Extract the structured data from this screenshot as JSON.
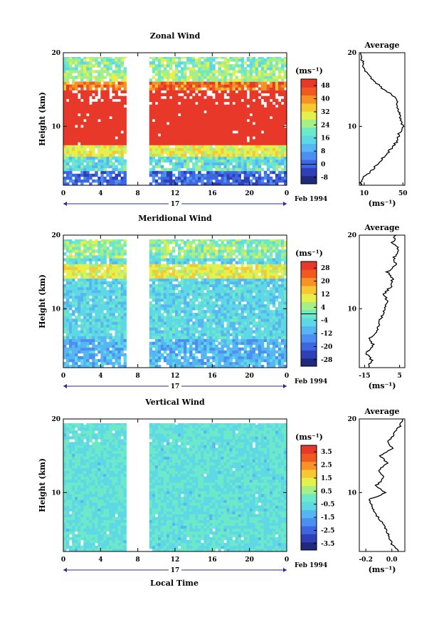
{
  "figure": {
    "time_label": "Local Time",
    "date_label": "Feb 1994",
    "day_label": "17"
  },
  "colormap": [
    "#202a7d",
    "#2f3fb6",
    "#3d66e0",
    "#4b8ff0",
    "#56b6f2",
    "#5fd8e6",
    "#6de8c9",
    "#a6ef86",
    "#e6f04a",
    "#f8c832",
    "#f89126",
    "#f05a20",
    "#e8382a"
  ],
  "chart_data": [
    {
      "type": "heatmap",
      "title": "Zonal Wind",
      "xlabel": "",
      "ylabel": "Height (km)",
      "units": "(ms⁻¹)",
      "x_ticks": [
        "0",
        "4",
        "8",
        "12",
        "16",
        "20",
        "0"
      ],
      "xlim": [
        0,
        24
      ],
      "ylim": [
        2,
        20
      ],
      "y_ticks": [
        "20",
        "10"
      ],
      "data_gap_hours": [
        6.9,
        9.2
      ],
      "colorbar_ticks": [
        "48",
        "40",
        "32",
        "24",
        "16",
        "8",
        "0",
        "-8"
      ],
      "colorbar_range": [
        -12,
        52
      ],
      "contour_level": 0,
      "profile": {
        "title": "Average",
        "xlim": [
          5,
          52
        ],
        "x_ticks": [
          "10",
          "50"
        ],
        "y_ticks": [
          "20",
          "10"
        ],
        "height_km": [
          2,
          3,
          4,
          5,
          6,
          7,
          8,
          9,
          10,
          11,
          12,
          13,
          14,
          15,
          16,
          17,
          18,
          19,
          20
        ],
        "values": [
          6,
          8,
          18,
          24,
          32,
          38,
          44,
          46,
          50,
          48,
          46,
          44,
          42,
          30,
          22,
          14,
          10,
          8,
          6
        ]
      }
    },
    {
      "type": "heatmap",
      "title": "Meridional Wind",
      "xlabel": "",
      "ylabel": "Height (km)",
      "units": "(ms⁻¹)",
      "x_ticks": [
        "0",
        "4",
        "8",
        "12",
        "16",
        "20",
        "0"
      ],
      "xlim": [
        0,
        24
      ],
      "ylim": [
        2,
        20
      ],
      "y_ticks": [
        "20",
        "10"
      ],
      "data_gap_hours": [
        6.9,
        9.2
      ],
      "colorbar_ticks": [
        "28",
        "20",
        "12",
        "4",
        "-4",
        "-12",
        "-20",
        "-28"
      ],
      "colorbar_range": [
        -32,
        32
      ],
      "contour_level": 0,
      "profile": {
        "title": "Average",
        "xlim": [
          -18,
          8
        ],
        "x_ticks": [
          "-15",
          "5"
        ],
        "y_ticks": [
          "20",
          "10"
        ],
        "height_km": [
          2,
          3,
          4,
          5,
          6,
          7,
          8,
          9,
          10,
          11,
          12,
          13,
          14,
          15,
          16,
          17,
          18,
          19,
          20
        ],
        "values": [
          -13,
          -11,
          -14,
          -10,
          -12,
          -8,
          -7,
          -5,
          -3,
          -2,
          -4,
          0,
          1,
          -2,
          3,
          2,
          5,
          1,
          3
        ]
      }
    },
    {
      "type": "heatmap",
      "title": "Vertical Wind",
      "xlabel": "Local Time",
      "ylabel": "Height (km)",
      "units": "(ms⁻¹)",
      "x_ticks": [
        "0",
        "4",
        "8",
        "12",
        "16",
        "20",
        "0"
      ],
      "xlim": [
        0,
        24
      ],
      "ylim": [
        2,
        20
      ],
      "y_ticks": [
        "20",
        "10"
      ],
      "data_gap_hours": [
        6.9,
        9.2
      ],
      "colorbar_ticks": [
        "3.5",
        "2.5",
        "1.5",
        "0.5",
        "-0.5",
        "-1.5",
        "-2.5",
        "-3.5"
      ],
      "colorbar_range": [
        -4,
        4
      ],
      "profile": {
        "title": "Average",
        "xlim": [
          -0.25,
          0.1
        ],
        "x_ticks": [
          "-0.2",
          "0.0"
        ],
        "y_ticks": [
          "20",
          "10"
        ],
        "height_km": [
          2,
          3,
          4,
          5,
          6,
          7,
          8,
          9,
          10,
          11,
          12,
          13,
          14,
          15,
          16,
          17,
          18,
          19,
          20
        ],
        "values": [
          0.05,
          0.0,
          -0.02,
          -0.05,
          -0.08,
          -0.12,
          -0.15,
          -0.18,
          -0.05,
          -0.12,
          -0.06,
          -0.1,
          -0.04,
          -0.09,
          0.0,
          -0.03,
          0.02,
          0.06,
          0.08
        ]
      }
    }
  ]
}
